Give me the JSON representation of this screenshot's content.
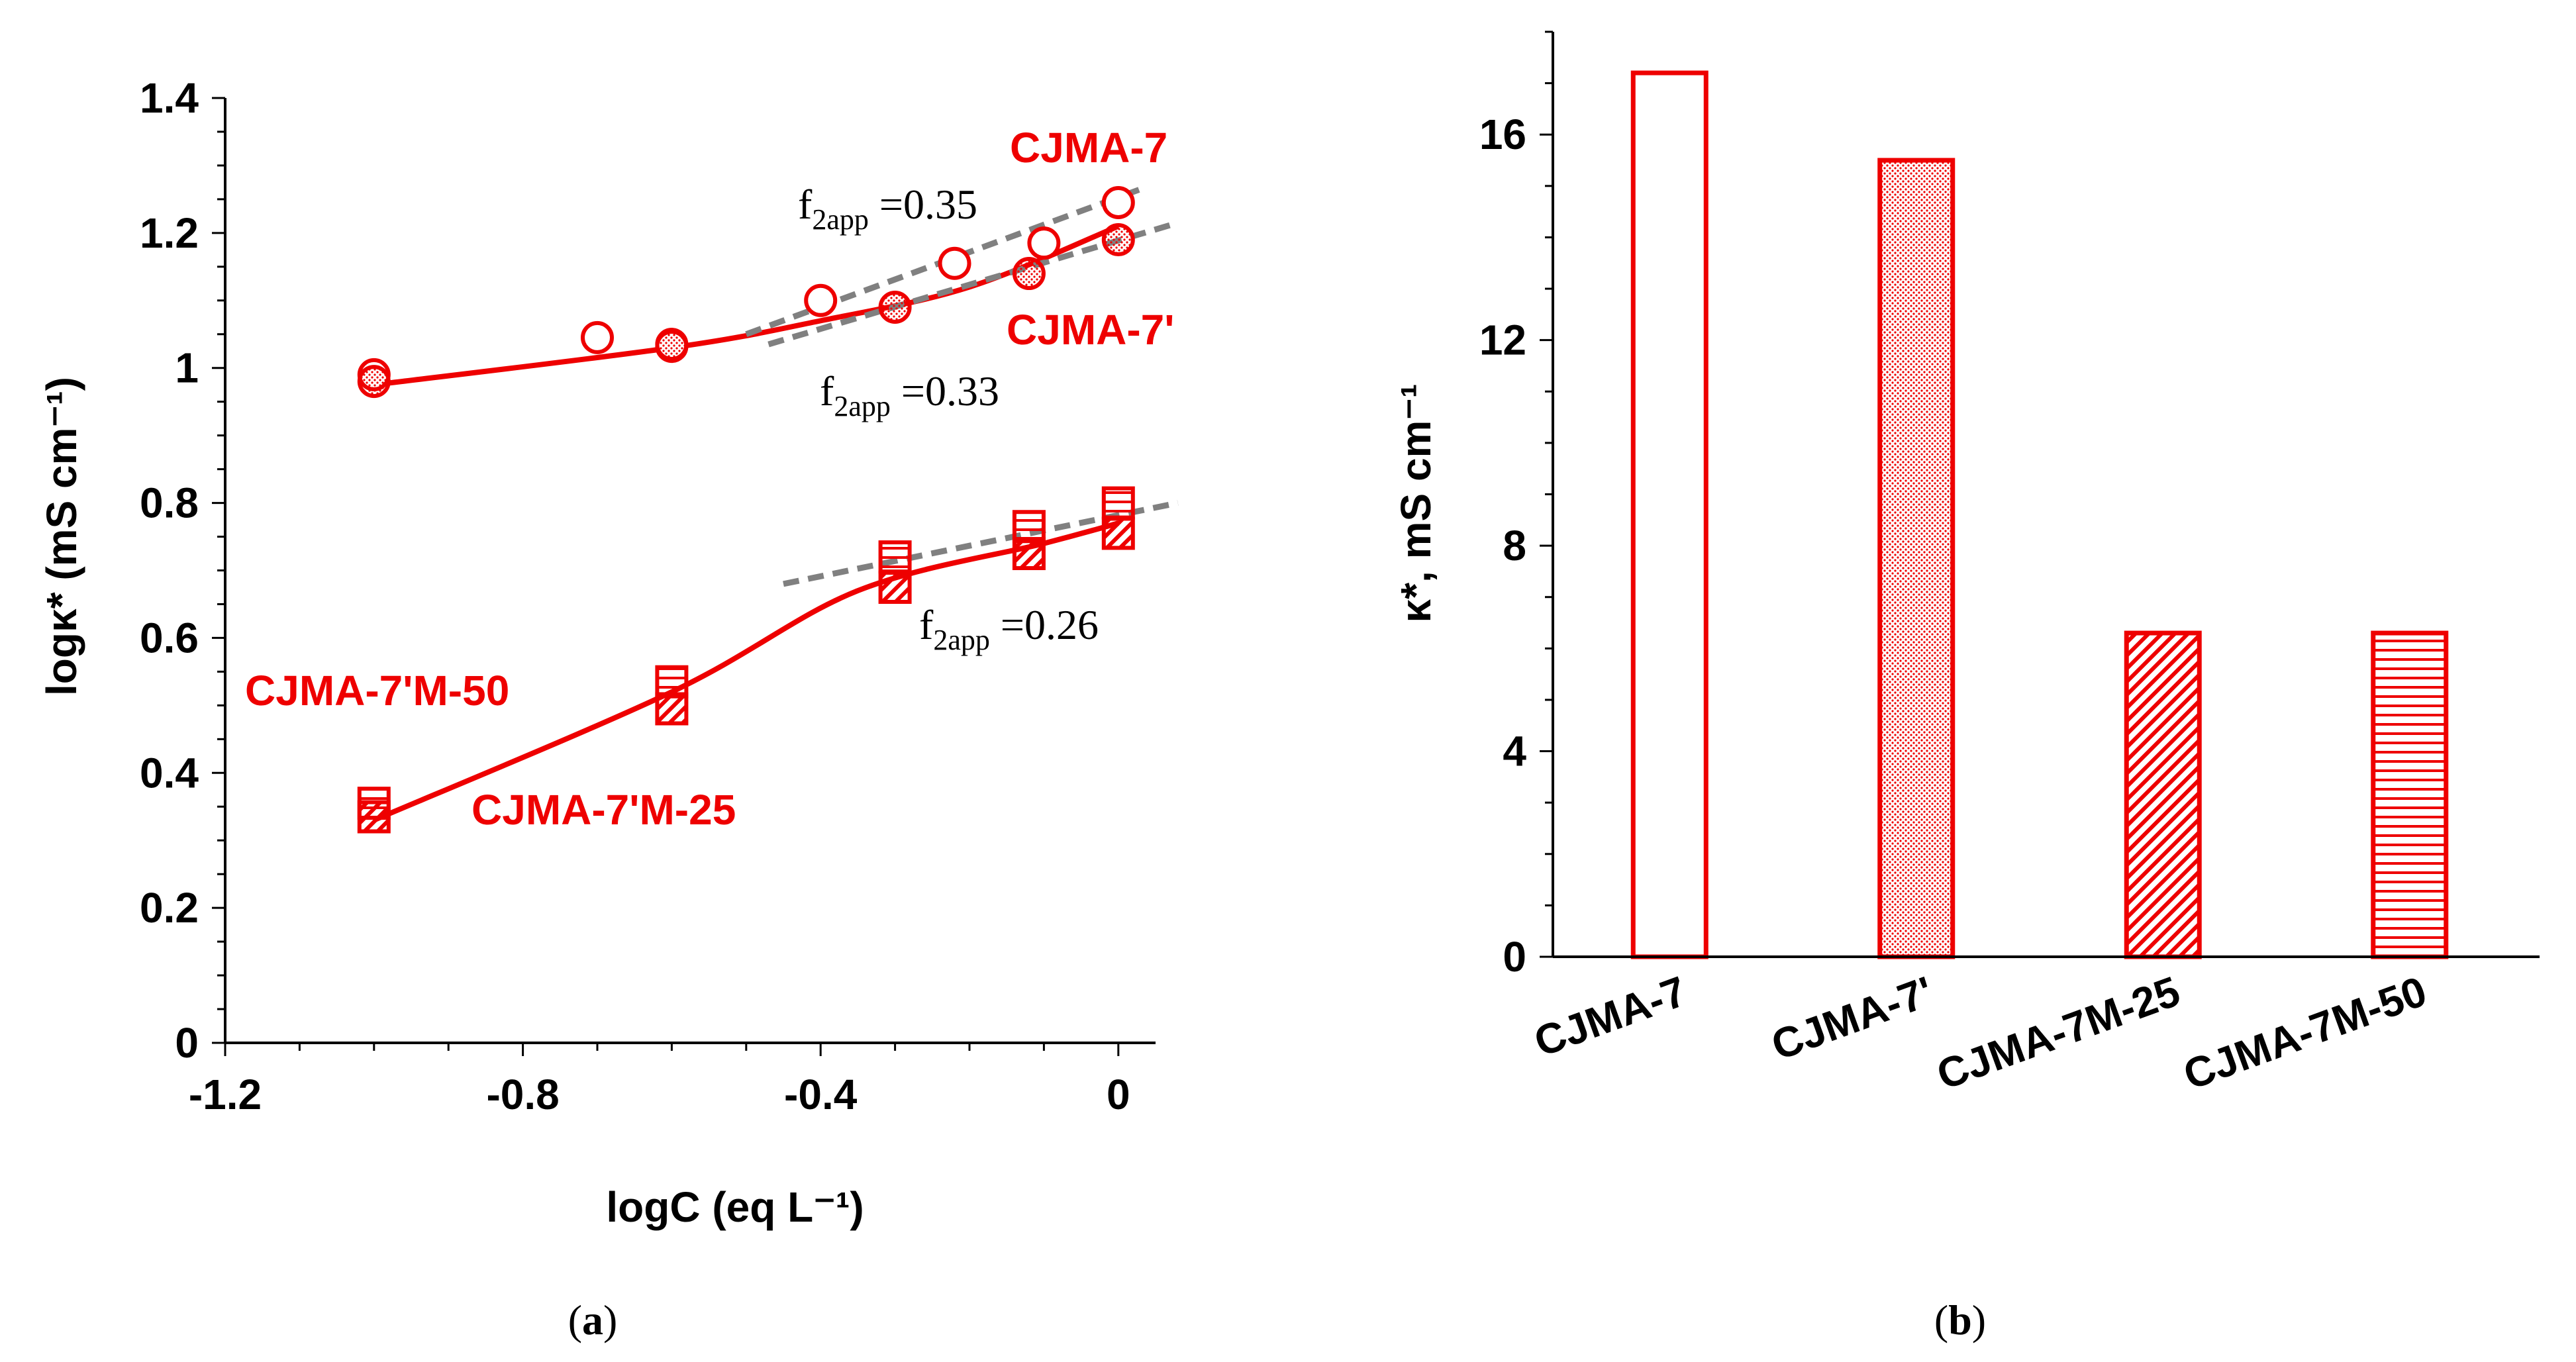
{
  "colors": {
    "series": "#ee0000",
    "fit": "#808080",
    "axis": "#000000"
  },
  "chart_data": [
    {
      "panel": "a",
      "type": "scatter",
      "caption": "a",
      "xlabel": "logC (eq L⁻¹)",
      "ylabel": "logκ*  (mS cm⁻¹)",
      "xlim": [
        -1.2,
        0.05
      ],
      "ylim": [
        0,
        1.4
      ],
      "xticks": [
        "-1.2",
        "-0.8",
        "-0.4",
        "0"
      ],
      "xtick_values": [
        -1.2,
        -0.8,
        -0.4,
        0
      ],
      "yticks": [
        "0",
        "0.2",
        "0.4",
        "0.6",
        "0.8",
        "1",
        "1.2",
        "1.4"
      ],
      "ytick_values": [
        0,
        0.2,
        0.4,
        0.6,
        0.8,
        1.0,
        1.2,
        1.4
      ],
      "series": [
        {
          "name": "CJMA-7",
          "marker": "circle",
          "fill": "none",
          "points": [
            [
              -1.0,
              0.99
            ],
            [
              -0.7,
              1.045
            ],
            [
              -0.6,
              1.035
            ],
            [
              -0.4,
              1.1
            ],
            [
              -0.22,
              1.155
            ],
            [
              -0.1,
              1.185
            ],
            [
              0,
              1.245
            ]
          ]
        },
        {
          "name": "CJMA-7'",
          "marker": "circle",
          "fill": "dots",
          "points": [
            [
              -1.0,
              0.98
            ],
            [
              -0.6,
              1.032
            ],
            [
              -0.3,
              1.09
            ],
            [
              -0.12,
              1.14
            ],
            [
              0,
              1.19
            ]
          ]
        },
        {
          "name": "CJMA-7'M-50",
          "marker": "square",
          "fill": "hlines",
          "points": [
            [
              -1.0,
              0.355
            ],
            [
              -0.6,
              0.535
            ],
            [
              -0.3,
              0.72
            ],
            [
              -0.12,
              0.765
            ],
            [
              0,
              0.8
            ]
          ]
        },
        {
          "name": "CJMA-7'M-25",
          "marker": "square",
          "fill": "hatch",
          "points": [
            [
              -1.0,
              0.335
            ],
            [
              -0.6,
              0.495
            ],
            [
              -0.3,
              0.675
            ],
            [
              -0.12,
              0.725
            ],
            [
              0,
              0.755
            ]
          ]
        }
      ],
      "fit_curves": [
        {
          "name": "upper-fit",
          "points": [
            [
              -1.0,
              0.975
            ],
            [
              -0.6,
              1.03
            ],
            [
              -0.4,
              1.07
            ],
            [
              -0.2,
              1.12
            ],
            [
              0,
              1.21
            ]
          ]
        },
        {
          "name": "lower-fit",
          "points": [
            [
              -1.0,
              0.33
            ],
            [
              -0.6,
              0.52
            ],
            [
              -0.35,
              0.67
            ],
            [
              -0.1,
              0.74
            ],
            [
              0,
              0.77
            ]
          ]
        }
      ],
      "tangents": [
        {
          "label": "0.35",
          "from": [
            -0.5,
            1.05
          ],
          "to": [
            0.03,
            1.265
          ]
        },
        {
          "label": "0.33",
          "from": [
            -0.47,
            1.035
          ],
          "to": [
            0.08,
            1.215
          ]
        },
        {
          "label": "0.26",
          "from": [
            -0.45,
            0.68
          ],
          "to": [
            0.08,
            0.8
          ]
        }
      ],
      "annotations": {
        "f_prefix": "f",
        "f_sub": "2app",
        "f_eq1": " =0.35",
        "f_eq2": " =0.33",
        "f_eq3": " =0.26"
      },
      "legend_labels": {
        "cjma7": "CJMA-7",
        "cjma7p": "CJMA-7'",
        "m50": "CJMA-7'M-50",
        "m25": "CJMA-7'M-25"
      }
    },
    {
      "panel": "b",
      "type": "bar",
      "caption": "b",
      "ylabel": "κ*, mS cm⁻¹",
      "ylim": [
        0,
        18
      ],
      "yticks": [
        "0",
        "4",
        "8",
        "12",
        "16"
      ],
      "ytick_values": [
        0,
        4,
        8,
        12,
        16
      ],
      "categories": [
        "CJMA-7",
        "CJMA-7'",
        "CJMA-7M-25",
        "CJMA-7M-50"
      ],
      "values": [
        17.2,
        15.5,
        6.3,
        6.3
      ],
      "fills": [
        "none",
        "dots",
        "hatch",
        "hlines"
      ]
    }
  ]
}
